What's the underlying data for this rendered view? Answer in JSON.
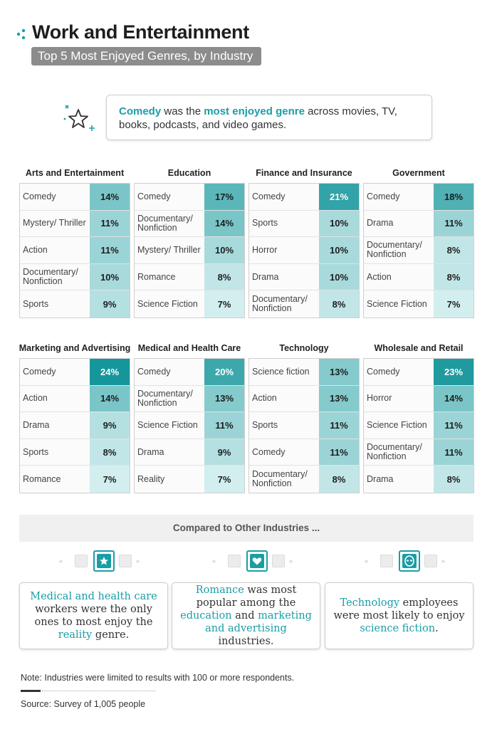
{
  "title": "Work and Entertainment",
  "subtitle": "Top 5 Most Enjoyed Genres, by Industry",
  "callout": {
    "genre": "Comedy",
    "text1": " was the ",
    "highlight": "most enjoyed genre",
    "text2": " across movies, TV, books, podcasts, and video games."
  },
  "chart_data": {
    "type": "table",
    "unit": "%",
    "panels": [
      {
        "industry": "Arts and Entertainment",
        "genres": [
          "Comedy",
          "Mystery/ Thriller",
          "Action",
          "Documentary/ Nonfiction",
          "Sports"
        ],
        "values": [
          14,
          11,
          11,
          10,
          9
        ]
      },
      {
        "industry": "Education",
        "genres": [
          "Comedy",
          "Documentary/ Nonfiction",
          "Mystery/ Thriller",
          "Romance",
          "Science Fiction"
        ],
        "values": [
          17,
          14,
          10,
          8,
          7
        ]
      },
      {
        "industry": "Finance and Insurance",
        "genres": [
          "Comedy",
          "Sports",
          "Horror",
          "Drama",
          "Documentary/ Nonfiction"
        ],
        "values": [
          21,
          10,
          10,
          10,
          8
        ]
      },
      {
        "industry": "Government",
        "genres": [
          "Comedy",
          "Drama",
          "Documentary/ Nonfiction",
          "Action",
          "Science Fiction"
        ],
        "values": [
          18,
          11,
          8,
          8,
          7
        ]
      },
      {
        "industry": "Marketing and Advertising",
        "genres": [
          "Comedy",
          "Action",
          "Drama",
          "Sports",
          "Romance"
        ],
        "values": [
          24,
          14,
          9,
          8,
          7
        ]
      },
      {
        "industry": "Medical and Health Care",
        "genres": [
          "Comedy",
          "Documentary/ Nonfiction",
          "Science Fiction",
          "Drama",
          "Reality"
        ],
        "values": [
          20,
          13,
          11,
          9,
          7
        ]
      },
      {
        "industry": "Technology",
        "genres": [
          "Science fiction",
          "Action",
          "Sports",
          "Comedy",
          "Documentary/ Nonfiction"
        ],
        "values": [
          13,
          13,
          11,
          11,
          8
        ]
      },
      {
        "industry": "Wholesale and Retail",
        "genres": [
          "Comedy",
          "Horror",
          "Science Fiction",
          "Documentary/ Nonfiction",
          "Drama"
        ],
        "values": [
          23,
          14,
          11,
          11,
          8
        ]
      }
    ],
    "color_scale": {
      "low": "#d3eeef",
      "high": "#15969b"
    }
  },
  "compare": {
    "label": "Compared to Other Industries ...",
    "icons": [
      "star-icon",
      "heart-icon",
      "alien-icon"
    ],
    "cards": [
      [
        {
          "t": "Medical and health care",
          "h": true
        },
        {
          "t": " workers were the only ones to most enjoy the ",
          "h": false
        },
        {
          "t": "reality",
          "h": true
        },
        {
          "t": " genre.",
          "h": false
        }
      ],
      [
        {
          "t": "Romance",
          "h": true
        },
        {
          "t": " was most popular among the ",
          "h": false
        },
        {
          "t": "education",
          "h": true
        },
        {
          "t": " and ",
          "h": false
        },
        {
          "t": "marketing and advertising",
          "h": true
        },
        {
          "t": " industries.",
          "h": false
        }
      ],
      [
        {
          "t": "Technology",
          "h": true
        },
        {
          "t": " employees were most likely to enjoy ",
          "h": false
        },
        {
          "t": "science fiction",
          "h": true
        },
        {
          "t": ".",
          "h": false
        }
      ]
    ]
  },
  "note": "Note: Industries were limited to results with 100 or more respondents.",
  "source": "Source: Survey of 1,005 people",
  "accent_color": "#1a9ea6"
}
